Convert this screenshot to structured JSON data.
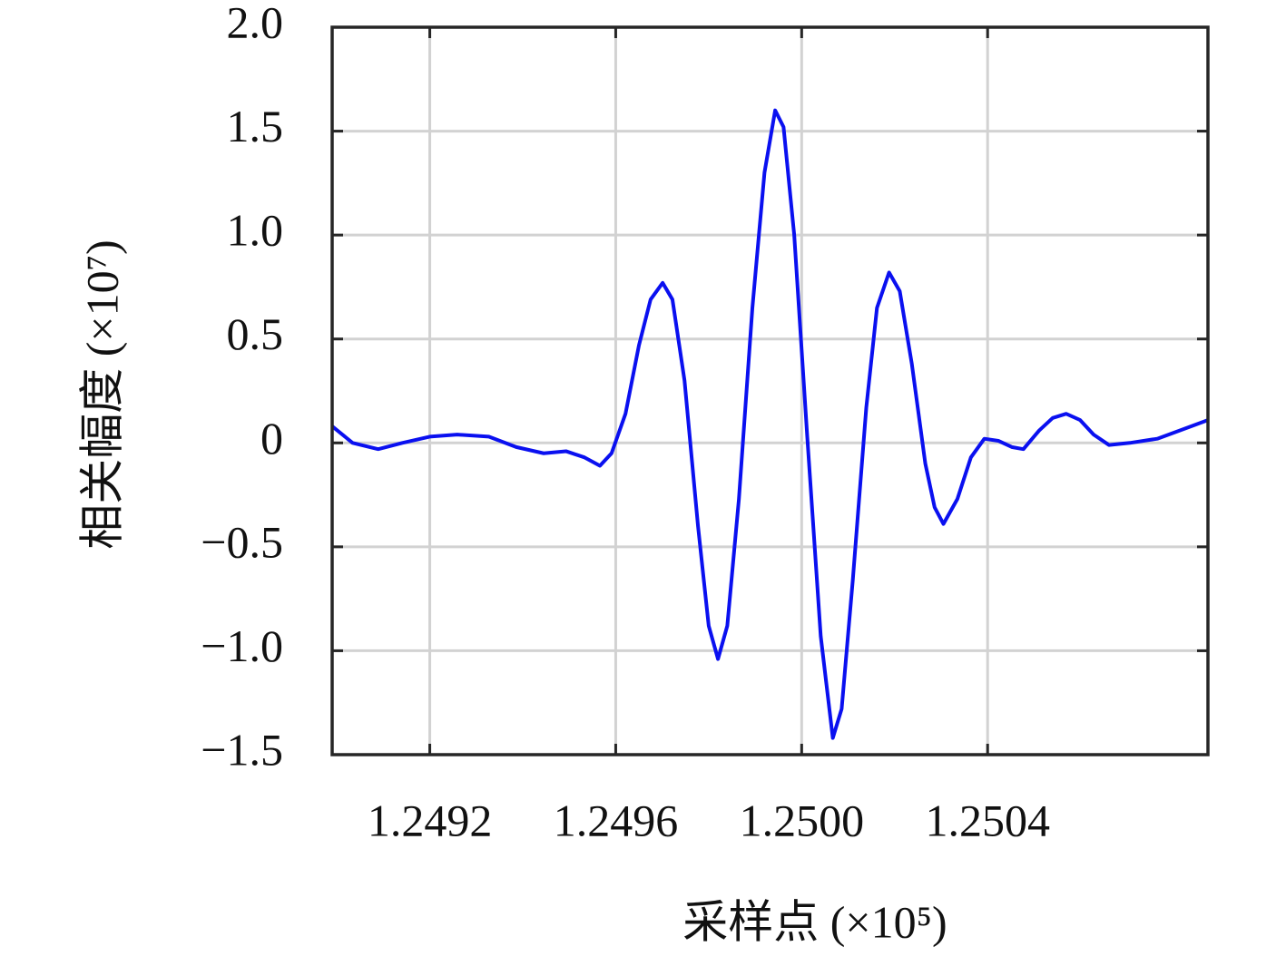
{
  "chart_data": {
    "type": "line",
    "xlabel": "采样点 (×10⁵)",
    "ylabel": "相关幅度 (×10⁷)",
    "x": [
      1.24899,
      1.249034,
      1.249089,
      1.249141,
      1.2492,
      1.249259,
      1.249327,
      1.249386,
      1.249445,
      1.249493,
      1.249533,
      1.249566,
      1.249591,
      1.249621,
      1.24965,
      1.249675,
      1.249701,
      1.249722,
      1.249748,
      1.249777,
      1.2498,
      1.24982,
      1.24984,
      1.249865,
      1.249894,
      1.24992,
      1.249943,
      1.249961,
      1.249984,
      1.250012,
      1.250041,
      1.250067,
      1.250086,
      1.25011,
      1.250139,
      1.250162,
      1.250188,
      1.250211,
      1.250237,
      1.250266,
      1.250286,
      1.250305,
      1.250335,
      1.250364,
      1.250393,
      1.250423,
      1.250452,
      1.250477,
      1.250511,
      1.25054,
      1.250569,
      1.250599,
      1.250628,
      1.250661,
      1.250706,
      1.250765,
      1.250814,
      1.250874
    ],
    "series": [
      {
        "color": "#0a10f0",
        "values": [
          0.08,
          0.0,
          -0.03,
          0.0,
          0.03,
          0.04,
          0.03,
          -0.02,
          -0.05,
          -0.04,
          -0.07,
          -0.11,
          -0.05,
          0.14,
          0.47,
          0.69,
          0.77,
          0.69,
          0.3,
          -0.4,
          -0.88,
          -1.04,
          -0.88,
          -0.27,
          0.65,
          1.3,
          1.6,
          1.52,
          1.0,
          0.03,
          -0.93,
          -1.42,
          -1.28,
          -0.66,
          0.17,
          0.65,
          0.82,
          0.73,
          0.38,
          -0.1,
          -0.31,
          -0.39,
          -0.27,
          -0.07,
          0.02,
          0.01,
          -0.02,
          -0.03,
          0.06,
          0.12,
          0.14,
          0.11,
          0.04,
          -0.01,
          0.0,
          0.02,
          0.06,
          0.11
        ]
      }
    ],
    "xlim": [
      1.24899,
      1.250874
    ],
    "xticks": [
      1.2492,
      1.2496,
      {
        "value": 1.25,
        "label": "1.2500"
      },
      1.2504
    ],
    "ylim": [
      -1.5,
      2
    ],
    "yticks": [
      {
        "value": -1.5,
        "label": "−1.5"
      },
      {
        "value": -1,
        "label": "−1.0"
      },
      {
        "value": -0.5,
        "label": "−0.5"
      },
      0,
      0.5,
      {
        "value": 1,
        "label": "1.0"
      },
      1.5,
      {
        "value": 2,
        "label": "2.0"
      }
    ],
    "grid": true
  }
}
